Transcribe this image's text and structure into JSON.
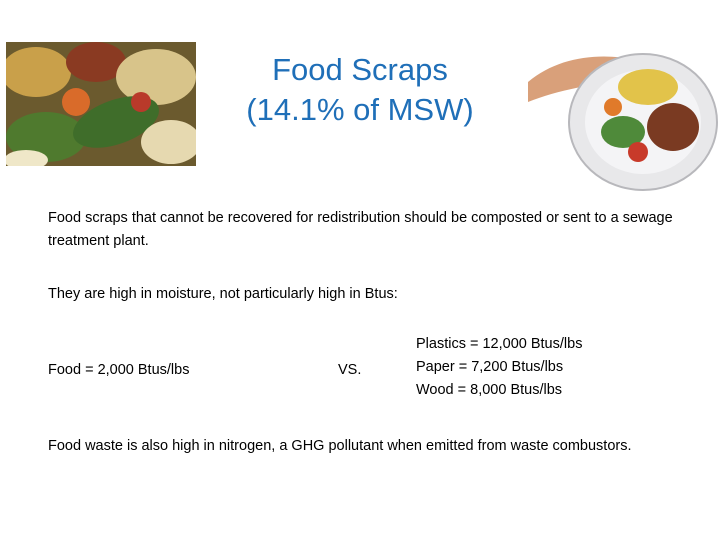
{
  "slide": {
    "title": [
      "Food Scraps",
      "(14.1% of MSW)"
    ],
    "paragraphs": [
      "Food scraps that cannot be recovered for redistribution should be composted or sent to a sewage treatment plant.",
      "They are high in moisture, not particularly high in Btus:"
    ],
    "comparison": {
      "left": "Food = 2,000 Btus/lbs",
      "middle": "VS.",
      "right": [
        "Plastics = 12,000 Btus/lbs",
        "Paper = 7,200 Btus/lbs",
        "Wood = 8,000 Btus/lbs"
      ]
    },
    "closing": "Food waste is also high in nitrogen, a GHG pollutant when emitted from waste combustors."
  }
}
